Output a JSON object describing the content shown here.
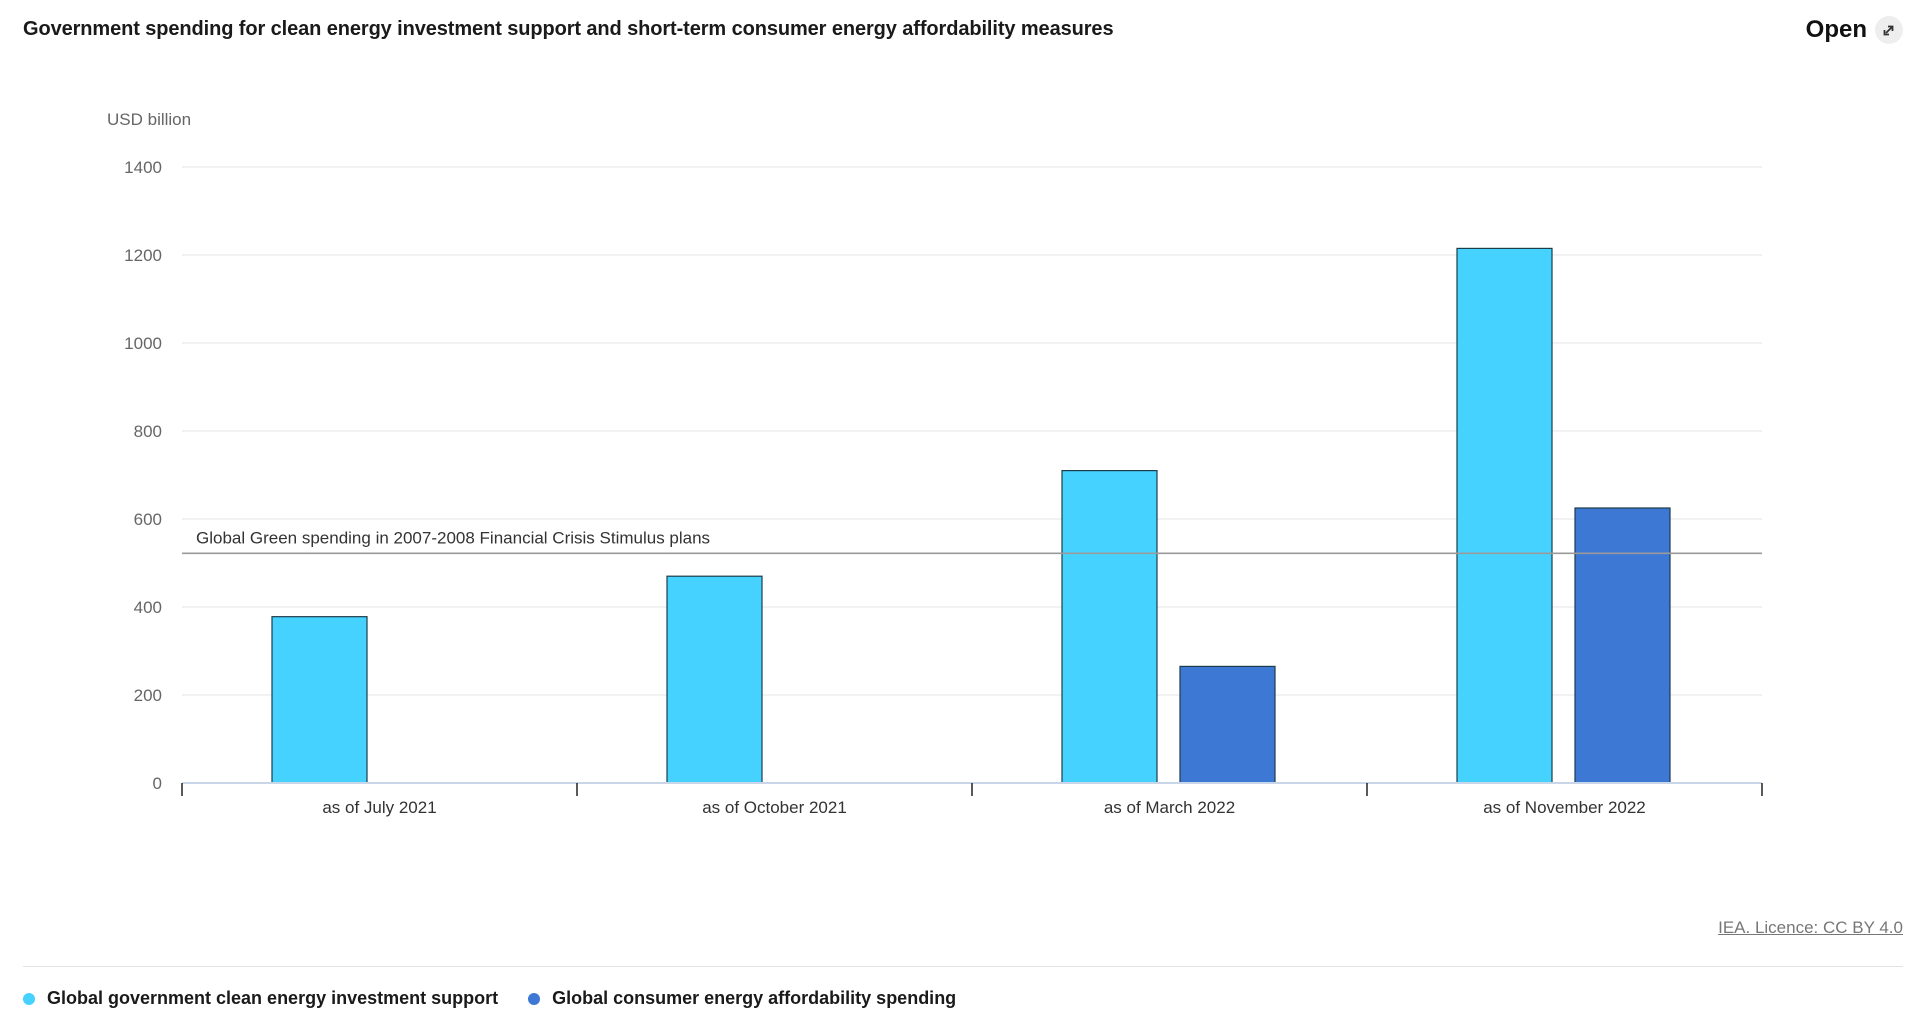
{
  "header": {
    "title": "Government spending for clean energy investment support and short-term consumer energy affordability measures",
    "open_label": "Open",
    "open_icon": "external-link-icon"
  },
  "footer": {
    "licence": "IEA. Licence: CC BY 4.0"
  },
  "legend": [
    {
      "label": "Global government clean energy investment support",
      "color": "#45d2fe"
    },
    {
      "label": "Global consumer energy affordability spending",
      "color": "#3d78d4"
    }
  ],
  "chart_data": {
    "type": "bar",
    "ylabel": "USD billion",
    "ylim": [
      0,
      1400
    ],
    "yticks": [
      0,
      200,
      400,
      600,
      800,
      1000,
      1200,
      1400
    ],
    "grid": true,
    "categories": [
      "as of July 2021",
      "as of October 2021",
      "as of March 2022",
      "as of November 2022"
    ],
    "series": [
      {
        "name": "Global government clean energy investment support",
        "color": "#45d2fe",
        "values": [
          378,
          470,
          710,
          1215
        ]
      },
      {
        "name": "Global consumer energy affordability spending",
        "color": "#3d78d4",
        "values": [
          null,
          null,
          265,
          625
        ]
      }
    ],
    "reference_line": {
      "label": "Global Green spending in 2007-2008 Financial Crisis Stimulus plans",
      "value": 522
    },
    "legend_position": "bottom"
  }
}
